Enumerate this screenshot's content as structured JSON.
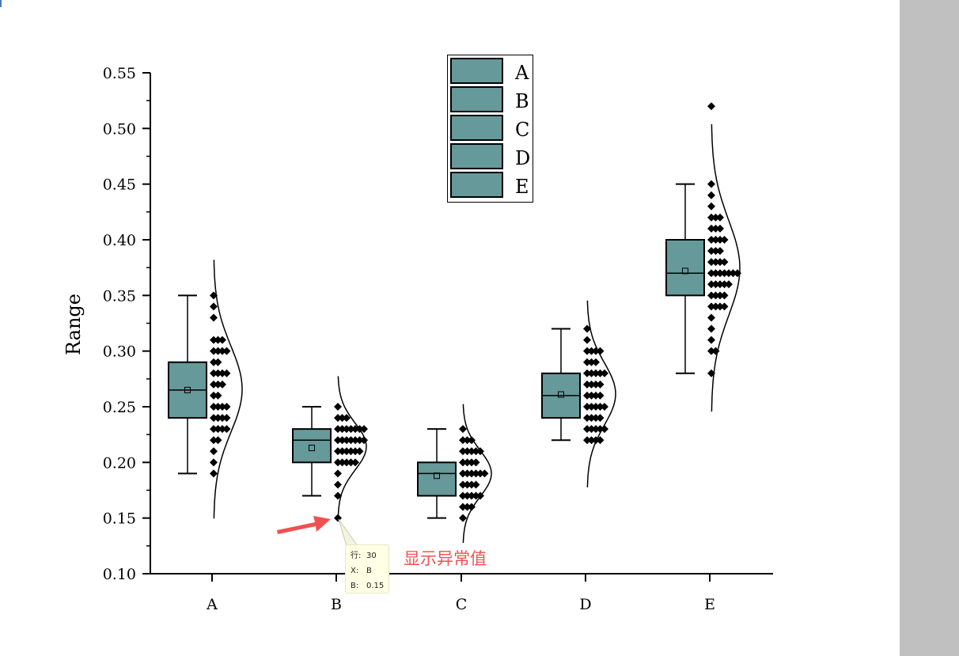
{
  "chart_data": {
    "type": "box",
    "title": "",
    "xlabel": "",
    "ylabel": "Range",
    "ylim": [
      0.1,
      0.55
    ],
    "yticks": [
      "0.10",
      "0.15",
      "0.20",
      "0.25",
      "0.30",
      "0.35",
      "0.40",
      "0.45",
      "0.50",
      "0.55"
    ],
    "categories": [
      "A",
      "B",
      "C",
      "D",
      "E"
    ],
    "box_color": "#669999",
    "legend": {
      "placement": "top-center",
      "entries": [
        "A",
        "B",
        "C",
        "D",
        "E"
      ]
    },
    "series": [
      {
        "name": "A",
        "box": {
          "q1": 0.24,
          "median": 0.265,
          "q3": 0.29,
          "mean": 0.265,
          "whisker_low": 0.19,
          "whisker_high": 0.35
        },
        "points": [
          0.35,
          0.34,
          0.33,
          0.31,
          0.31,
          0.31,
          0.3,
          0.3,
          0.3,
          0.3,
          0.29,
          0.29,
          0.28,
          0.28,
          0.28,
          0.28,
          0.27,
          0.27,
          0.27,
          0.26,
          0.26,
          0.25,
          0.25,
          0.25,
          0.25,
          0.24,
          0.24,
          0.24,
          0.24,
          0.23,
          0.23,
          0.23,
          0.23,
          0.22,
          0.22,
          0.21,
          0.2,
          0.19
        ]
      },
      {
        "name": "B",
        "box": {
          "q1": 0.2,
          "median": 0.22,
          "q3": 0.23,
          "mean": 0.213,
          "whisker_low": 0.17,
          "whisker_high": 0.25
        },
        "points": [
          0.25,
          0.24,
          0.24,
          0.24,
          0.23,
          0.23,
          0.23,
          0.23,
          0.23,
          0.23,
          0.23,
          0.22,
          0.22,
          0.22,
          0.22,
          0.22,
          0.22,
          0.22,
          0.21,
          0.21,
          0.21,
          0.21,
          0.21,
          0.21,
          0.2,
          0.2,
          0.2,
          0.2,
          0.2,
          0.19,
          0.18,
          0.17,
          0.15
        ]
      },
      {
        "name": "C",
        "box": {
          "q1": 0.17,
          "median": 0.19,
          "q3": 0.2,
          "mean": 0.188,
          "whisker_low": 0.15,
          "whisker_high": 0.23
        },
        "points": [
          0.23,
          0.22,
          0.22,
          0.22,
          0.21,
          0.21,
          0.21,
          0.21,
          0.21,
          0.2,
          0.2,
          0.2,
          0.2,
          0.19,
          0.19,
          0.19,
          0.19,
          0.19,
          0.19,
          0.18,
          0.18,
          0.18,
          0.18,
          0.17,
          0.17,
          0.17,
          0.17,
          0.17,
          0.16,
          0.16,
          0.16,
          0.15
        ]
      },
      {
        "name": "D",
        "box": {
          "q1": 0.24,
          "median": 0.26,
          "q3": 0.28,
          "mean": 0.261,
          "whisker_low": 0.22,
          "whisker_high": 0.32
        },
        "points": [
          0.32,
          0.31,
          0.3,
          0.3,
          0.3,
          0.3,
          0.29,
          0.29,
          0.29,
          0.28,
          0.28,
          0.28,
          0.28,
          0.28,
          0.27,
          0.27,
          0.27,
          0.27,
          0.26,
          0.26,
          0.26,
          0.26,
          0.25,
          0.25,
          0.25,
          0.25,
          0.25,
          0.24,
          0.24,
          0.24,
          0.24,
          0.23,
          0.23,
          0.23,
          0.23,
          0.23,
          0.22,
          0.22,
          0.22,
          0.22
        ]
      },
      {
        "name": "E",
        "box": {
          "q1": 0.35,
          "median": 0.37,
          "q3": 0.4,
          "mean": 0.372,
          "whisker_low": 0.28,
          "whisker_high": 0.45
        },
        "points": [
          0.52,
          0.45,
          0.44,
          0.43,
          0.42,
          0.42,
          0.42,
          0.41,
          0.41,
          0.41,
          0.4,
          0.4,
          0.4,
          0.4,
          0.39,
          0.39,
          0.39,
          0.38,
          0.38,
          0.38,
          0.38,
          0.37,
          0.37,
          0.37,
          0.37,
          0.37,
          0.37,
          0.37,
          0.36,
          0.36,
          0.36,
          0.36,
          0.36,
          0.35,
          0.35,
          0.35,
          0.35,
          0.34,
          0.34,
          0.34,
          0.34,
          0.33,
          0.32,
          0.31,
          0.3,
          0.3,
          0.28
        ]
      }
    ],
    "annotation": {
      "text": "显示异常值",
      "color": "#f25050"
    }
  },
  "tooltip": {
    "row_label": "行:",
    "row_value": "30",
    "x_label": "X:",
    "x_value": "B",
    "y_label": "B:",
    "y_value": "0.15"
  }
}
